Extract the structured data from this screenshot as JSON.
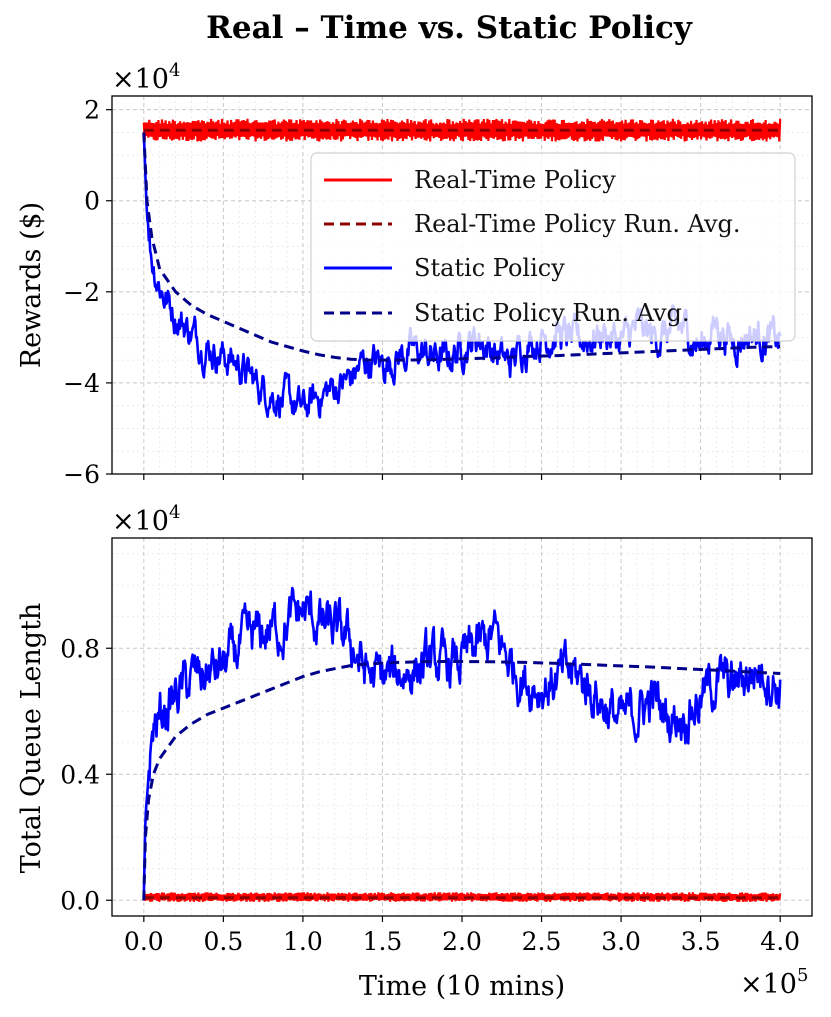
{
  "figure": {
    "title": "Real – Time vs. Static Policy"
  },
  "chart_data": [
    {
      "type": "line",
      "panel": "top",
      "title": "Real – Time vs. Static Policy",
      "xlabel": "",
      "ylabel": "Rewards ($)",
      "y_offset_text": "×10",
      "y_offset_exp": "4",
      "xlim": [
        -0.2,
        4.2
      ],
      "ylim": [
        -6.0,
        2.3
      ],
      "y_ticks": [
        -6,
        -4,
        -2,
        0,
        2
      ],
      "y_tick_labels": [
        "−6",
        "−4",
        "−2",
        "0",
        "2"
      ],
      "grid": true,
      "legend_position": "upper-right",
      "legend": [
        {
          "label": "Real-Time Policy",
          "color": "#ff0000",
          "style": "solid"
        },
        {
          "label": "Real-Time Policy Run. Avg.",
          "color": "#8b0000",
          "style": "dashed"
        },
        {
          "label": "Static Policy",
          "color": "#0000ff",
          "style": "solid"
        },
        {
          "label": "Static Policy Run. Avg.",
          "color": "#00008b",
          "style": "dashed"
        }
      ],
      "series": [
        {
          "name": "Real-Time Policy",
          "color": "#ff0000",
          "style": "band",
          "x_range": [
            0.0,
            4.0
          ],
          "low": 1.3,
          "high": 1.8
        },
        {
          "name": "Real-Time Policy Run. Avg.",
          "color": "#8b0000",
          "style": "dashed",
          "x": [
            0.0,
            4.0
          ],
          "values": [
            1.55,
            1.55
          ]
        },
        {
          "name": "Static Policy",
          "color": "#0000ff",
          "style": "solid",
          "x": [
            0.0,
            0.02,
            0.05,
            0.08,
            0.12,
            0.2,
            0.3,
            0.4,
            0.5,
            0.6,
            0.7,
            0.8,
            0.9,
            1.0,
            1.1,
            1.2,
            1.3,
            1.4,
            1.5,
            1.6,
            1.7,
            1.8,
            1.9,
            2.0,
            2.1,
            2.2,
            2.3,
            2.4,
            2.5,
            2.6,
            2.7,
            2.8,
            2.9,
            3.0,
            3.1,
            3.2,
            3.3,
            3.4,
            3.5,
            3.6,
            3.7,
            3.8,
            3.9,
            4.0
          ],
          "values": [
            1.5,
            -0.3,
            -1.2,
            -1.6,
            -2.0,
            -2.5,
            -2.9,
            -3.2,
            -3.4,
            -3.6,
            -4.0,
            -4.2,
            -4.4,
            -4.6,
            -4.3,
            -4.1,
            -3.9,
            -3.5,
            -3.6,
            -3.4,
            -3.3,
            -3.4,
            -3.5,
            -3.2,
            -3.0,
            -3.3,
            -3.6,
            -3.1,
            -3.0,
            -2.9,
            -3.1,
            -3.0,
            -2.9,
            -3.1,
            -2.8,
            -3.0,
            -2.9,
            -2.8,
            -3.2,
            -2.7,
            -3.1,
            -2.9,
            -3.0,
            -3.1
          ],
          "noise": 0.55
        },
        {
          "name": "Static Policy Run. Avg.",
          "color": "#00008b",
          "style": "dashed",
          "x": [
            0.0,
            0.02,
            0.05,
            0.1,
            0.2,
            0.3,
            0.4,
            0.5,
            0.6,
            0.7,
            0.8,
            0.9,
            1.0,
            1.1,
            1.2,
            1.3,
            1.4,
            1.6,
            1.8,
            2.0,
            2.2,
            2.4,
            2.6,
            2.8,
            3.0,
            3.2,
            3.4,
            3.6,
            3.8,
            4.0
          ],
          "values": [
            1.5,
            0.0,
            -0.8,
            -1.5,
            -2.0,
            -2.3,
            -2.5,
            -2.65,
            -2.8,
            -2.95,
            -3.1,
            -3.2,
            -3.3,
            -3.38,
            -3.44,
            -3.48,
            -3.5,
            -3.5,
            -3.49,
            -3.47,
            -3.45,
            -3.42,
            -3.4,
            -3.37,
            -3.34,
            -3.31,
            -3.28,
            -3.25,
            -3.22,
            -3.2
          ]
        }
      ]
    },
    {
      "type": "line",
      "panel": "bottom",
      "xlabel": "Time (10 mins)",
      "ylabel": "Total Queue Length",
      "y_offset_text": "×10",
      "y_offset_exp": "4",
      "x_offset_text": "×10",
      "x_offset_exp": "5",
      "xlim": [
        -0.2,
        4.2
      ],
      "ylim": [
        -0.05,
        1.15
      ],
      "x_ticks": [
        0.0,
        0.5,
        1.0,
        1.5,
        2.0,
        2.5,
        3.0,
        3.5,
        4.0
      ],
      "x_tick_labels": [
        "0.0",
        "0.5",
        "1.0",
        "1.5",
        "2.0",
        "2.5",
        "3.0",
        "3.5",
        "4.0"
      ],
      "y_ticks": [
        0.0,
        0.4,
        0.8
      ],
      "y_tick_labels": [
        "0.0",
        "0.4",
        "0.8"
      ],
      "grid": true,
      "series": [
        {
          "name": "Real-Time Policy",
          "color": "#ff0000",
          "style": "band",
          "x_range": [
            0.0,
            4.0
          ],
          "low": -0.005,
          "high": 0.025
        },
        {
          "name": "Real-Time Policy Run. Avg.",
          "color": "#8b0000",
          "style": "dashed",
          "x": [
            0.0,
            4.0
          ],
          "values": [
            0.008,
            0.008
          ]
        },
        {
          "name": "Static Policy",
          "color": "#0000ff",
          "style": "solid",
          "x": [
            0.0,
            0.01,
            0.03,
            0.06,
            0.1,
            0.2,
            0.3,
            0.4,
            0.5,
            0.6,
            0.7,
            0.8,
            0.9,
            1.0,
            1.1,
            1.2,
            1.3,
            1.4,
            1.5,
            1.6,
            1.7,
            1.8,
            1.9,
            2.0,
            2.1,
            2.2,
            2.3,
            2.4,
            2.5,
            2.6,
            2.7,
            2.8,
            2.9,
            3.0,
            3.1,
            3.2,
            3.3,
            3.4,
            3.5,
            3.6,
            3.7,
            3.8,
            3.9,
            4.0
          ],
          "values": [
            0.0,
            0.25,
            0.4,
            0.55,
            0.58,
            0.65,
            0.7,
            0.72,
            0.74,
            0.8,
            0.83,
            0.86,
            0.88,
            0.92,
            0.88,
            0.85,
            0.82,
            0.72,
            0.7,
            0.72,
            0.74,
            0.75,
            0.74,
            0.76,
            0.8,
            0.84,
            0.76,
            0.7,
            0.68,
            0.7,
            0.72,
            0.68,
            0.62,
            0.56,
            0.6,
            0.64,
            0.58,
            0.6,
            0.64,
            0.7,
            0.68,
            0.72,
            0.74,
            0.67
          ],
          "noise": 0.11
        },
        {
          "name": "Static Policy Run. Avg.",
          "color": "#00008b",
          "style": "dashed",
          "x": [
            0.0,
            0.01,
            0.03,
            0.06,
            0.1,
            0.2,
            0.3,
            0.4,
            0.5,
            0.6,
            0.7,
            0.8,
            0.9,
            1.0,
            1.1,
            1.2,
            1.3,
            1.4,
            1.6,
            1.8,
            2.0,
            2.2,
            2.4,
            2.6,
            2.8,
            3.0,
            3.2,
            3.4,
            3.6,
            3.8,
            4.0
          ],
          "values": [
            0.0,
            0.2,
            0.32,
            0.4,
            0.45,
            0.52,
            0.56,
            0.59,
            0.61,
            0.63,
            0.65,
            0.67,
            0.69,
            0.71,
            0.725,
            0.735,
            0.745,
            0.75,
            0.755,
            0.758,
            0.758,
            0.757,
            0.755,
            0.752,
            0.748,
            0.744,
            0.74,
            0.735,
            0.73,
            0.725,
            0.72
          ]
        }
      ]
    }
  ]
}
